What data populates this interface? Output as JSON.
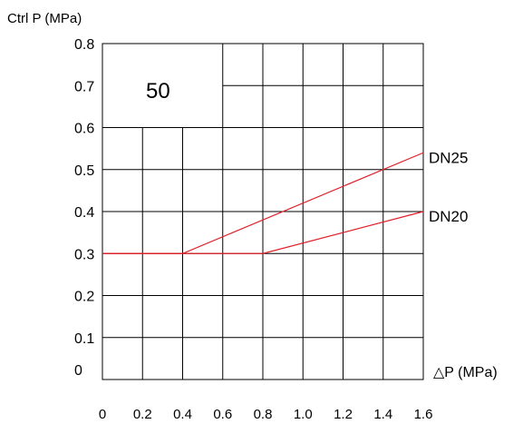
{
  "chart_data": {
    "type": "line",
    "ylabel": "Ctrl P (MPa)",
    "xlabel": "△P (MPa)",
    "annotation": "50",
    "xlim": [
      0,
      1.6
    ],
    "ylim": [
      0,
      0.8
    ],
    "x_ticks": [
      "0",
      "0.2",
      "0.4",
      "0.6",
      "0.8",
      "1.0",
      "1.2",
      "1.4",
      "1.6"
    ],
    "y_ticks": [
      "0",
      "0.1",
      "0.2",
      "0.3",
      "0.4",
      "0.5",
      "0.6",
      "0.7",
      "0.8"
    ],
    "grid": true,
    "line_color": "#e0202a",
    "series": [
      {
        "name": "DN25",
        "points": [
          [
            0,
            0.3
          ],
          [
            0.4,
            0.3
          ],
          [
            1.6,
            0.54
          ]
        ]
      },
      {
        "name": "DN20",
        "points": [
          [
            0,
            0.3
          ],
          [
            0.8,
            0.3
          ],
          [
            1.6,
            0.4
          ]
        ]
      }
    ]
  }
}
